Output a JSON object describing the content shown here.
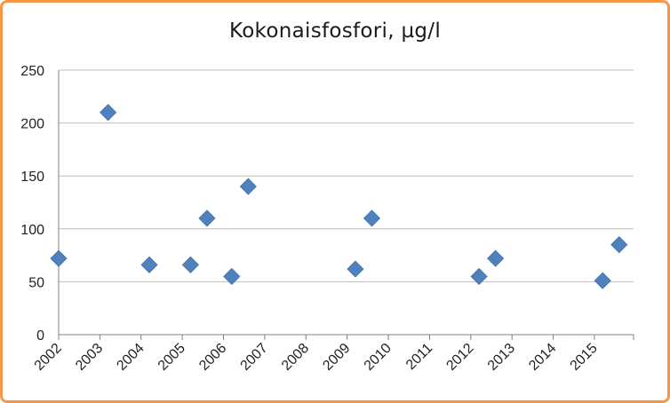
{
  "chart_data": {
    "type": "scatter",
    "title": "Kokonaisfosfori, µg/l",
    "xlabel": "",
    "ylabel": "",
    "x_tick_labels": [
      "2002",
      "2003",
      "2004",
      "2005",
      "2006",
      "2007",
      "2008",
      "2009",
      "2010",
      "2011",
      "2012",
      "2013",
      "2014",
      "2015"
    ],
    "y_tick_labels": [
      "0",
      "50",
      "100",
      "150",
      "200",
      "250"
    ],
    "xlim": [
      2002,
      2015.95
    ],
    "ylim": [
      0,
      250
    ],
    "grid": true,
    "legend": "none",
    "marker": "diamond",
    "colors": {
      "marker": "#4F81BD",
      "frame": "#F79646",
      "grid": "#BFBFBF",
      "axis": "#808080"
    },
    "points": [
      {
        "x": 2002.0,
        "y": 72
      },
      {
        "x": 2003.2,
        "y": 210
      },
      {
        "x": 2004.2,
        "y": 66
      },
      {
        "x": 2005.2,
        "y": 66
      },
      {
        "x": 2005.6,
        "y": 110
      },
      {
        "x": 2006.2,
        "y": 55
      },
      {
        "x": 2006.6,
        "y": 140
      },
      {
        "x": 2009.2,
        "y": 62
      },
      {
        "x": 2009.6,
        "y": 110
      },
      {
        "x": 2012.2,
        "y": 55
      },
      {
        "x": 2012.6,
        "y": 72
      },
      {
        "x": 2015.2,
        "y": 51
      },
      {
        "x": 2015.6,
        "y": 85
      }
    ]
  }
}
